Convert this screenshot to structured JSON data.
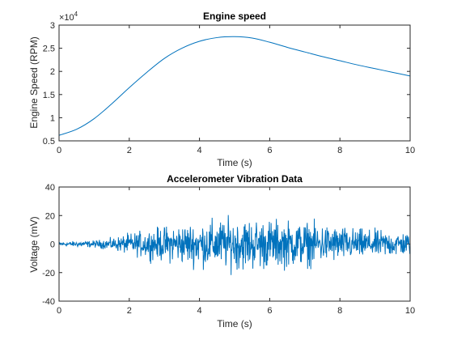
{
  "chart_data": [
    {
      "type": "line",
      "title": "Engine speed",
      "xlabel": "Time (s)",
      "ylabel": "Engine Speed (RPM)",
      "xlim": [
        0,
        10
      ],
      "ylim": [
        0.5,
        3
      ],
      "y_exponent_label": "×10",
      "y_exponent_power": "4",
      "x_ticks": [
        "0",
        "2",
        "4",
        "6",
        "8",
        "10"
      ],
      "y_ticks": [
        "0.5",
        "1",
        "1.5",
        "2",
        "2.5",
        "3"
      ],
      "x_tick_values": [
        0,
        2,
        4,
        6,
        8,
        10
      ],
      "y_tick_values": [
        0.5,
        1,
        1.5,
        2,
        2.5,
        3
      ],
      "grid": false,
      "box": true,
      "series": [
        {
          "color": "#0072BD",
          "x": [
            0,
            0.5,
            1,
            1.5,
            2,
            2.5,
            3,
            3.5,
            4,
            4.5,
            5,
            5.5,
            6,
            6.5,
            7,
            7.5,
            8,
            8.5,
            9,
            9.5,
            10
          ],
          "y": [
            0.62,
            0.75,
            0.98,
            1.3,
            1.65,
            1.98,
            2.28,
            2.5,
            2.65,
            2.73,
            2.75,
            2.72,
            2.63,
            2.52,
            2.42,
            2.32,
            2.23,
            2.14,
            2.06,
            1.98,
            1.9
          ]
        }
      ]
    },
    {
      "type": "line",
      "title": "Accelerometer Vibration Data",
      "xlabel": "Time (s)",
      "ylabel": "Voltage (mV)",
      "xlim": [
        0,
        10
      ],
      "ylim": [
        -40,
        40
      ],
      "x_ticks": [
        "0",
        "2",
        "4",
        "6",
        "8",
        "10"
      ],
      "y_ticks": [
        "-40",
        "-20",
        "0",
        "20",
        "40"
      ],
      "x_tick_values": [
        0,
        2,
        4,
        6,
        8,
        10
      ],
      "y_tick_values": [
        -40,
        -20,
        0,
        20,
        40
      ],
      "grid": false,
      "box": true,
      "envelope": {
        "x": [
          0,
          1,
          1.5,
          2,
          2.5,
          3,
          3.5,
          4,
          4.5,
          5,
          5.5,
          6,
          6.5,
          7,
          7.5,
          8,
          8.5,
          9,
          9.5,
          10
        ],
        "amplitude": [
          2,
          3,
          5,
          9,
          12,
          15,
          17,
          19,
          21,
          22,
          22,
          21,
          20,
          19,
          17,
          15,
          13,
          12,
          11,
          10
        ]
      },
      "approx_samples": 1000,
      "series": [
        {
          "color": "#0072BD"
        }
      ]
    }
  ]
}
